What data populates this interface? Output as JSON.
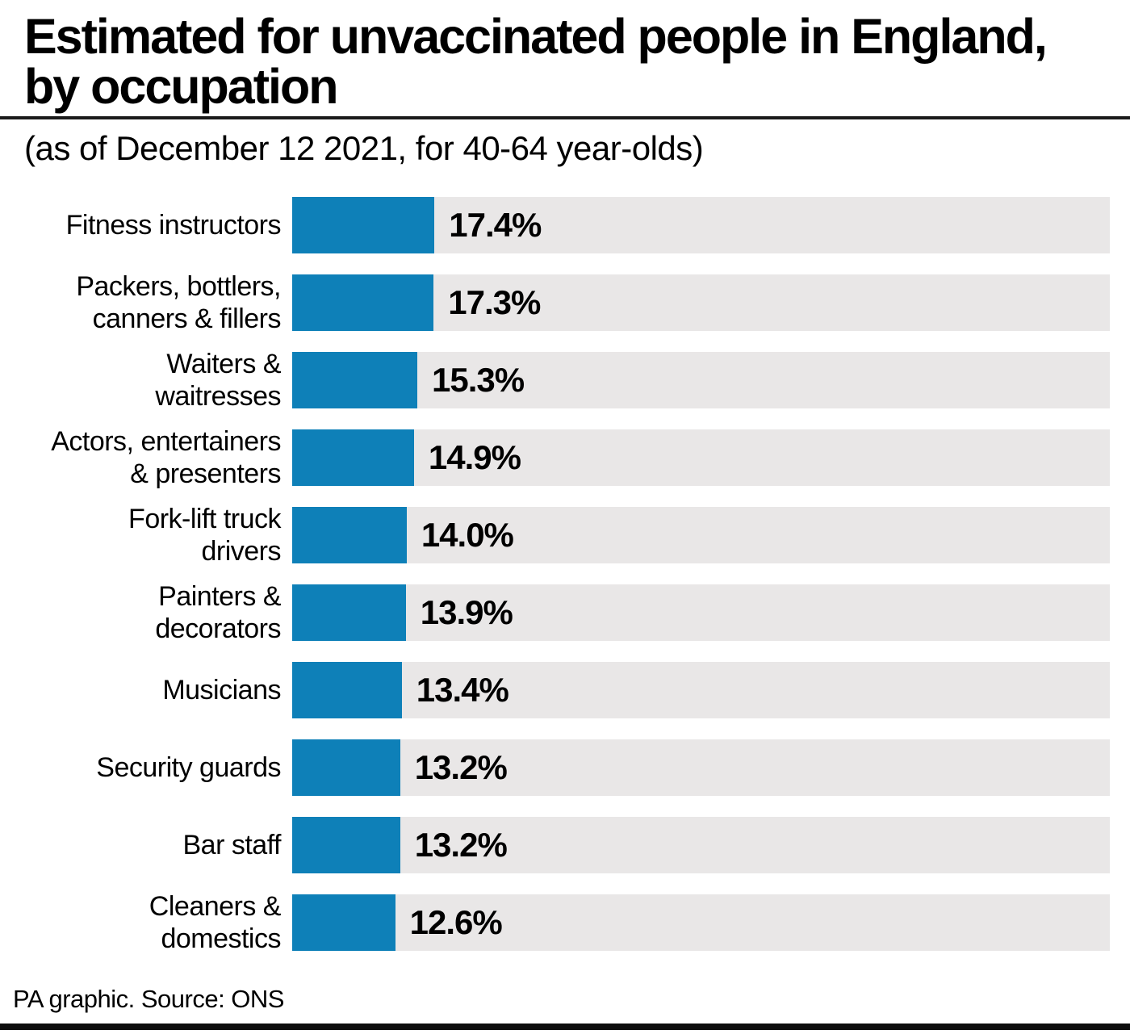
{
  "title": "Estimated for unvaccinated people in England,\nby occupation",
  "subtitle": "(as of December 12 2021, for 40-64 year-olds)",
  "source_credit": "PA graphic. Source: ONS",
  "colors": {
    "bar_fill": "#0e80b8",
    "bar_track": "#e9e7e7",
    "divider": "#1a1a1a",
    "bottom_strip": "#0d0d0d",
    "text": "#000000"
  },
  "chart_data": {
    "type": "bar",
    "orientation": "horizontal",
    "title": "Estimated for unvaccinated people in England, by occupation",
    "subtitle": "(as of December 12 2021, for 40-64 year-olds)",
    "xlabel": "",
    "ylabel": "",
    "value_unit": "%",
    "value_axis_range": [
      0,
      100
    ],
    "grid": false,
    "legend": false,
    "categories": [
      "Fitness instructors",
      "Packers, bottlers, canners & fillers",
      "Waiters & waitresses",
      "Actors, entertainers & presenters",
      "Fork-lift truck drivers",
      "Painters & decorators",
      "Musicians",
      "Security guards",
      "Bar staff",
      "Cleaners & domestics"
    ],
    "values": [
      17.4,
      17.3,
      15.3,
      14.9,
      14.0,
      13.9,
      13.4,
      13.2,
      13.2,
      12.6
    ],
    "rows": [
      {
        "label": "Fitness instructors",
        "value": 17.4,
        "value_label": "17.4%"
      },
      {
        "label": "Packers, bottlers,\ncanners & fillers",
        "value": 17.3,
        "value_label": "17.3%"
      },
      {
        "label": "Waiters &\nwaitresses",
        "value": 15.3,
        "value_label": "15.3%"
      },
      {
        "label": "Actors, entertainers\n& presenters",
        "value": 14.9,
        "value_label": "14.9%"
      },
      {
        "label": "Fork-lift truck\ndrivers",
        "value": 14.0,
        "value_label": "14.0%"
      },
      {
        "label": "Painters &\ndecorators",
        "value": 13.9,
        "value_label": "13.9%"
      },
      {
        "label": "Musicians",
        "value": 13.4,
        "value_label": "13.4%"
      },
      {
        "label": "Security guards",
        "value": 13.2,
        "value_label": "13.2%"
      },
      {
        "label": "Bar staff",
        "value": 13.2,
        "value_label": "13.2%"
      },
      {
        "label": "Cleaners &\ndomestics",
        "value": 12.6,
        "value_label": "12.6%"
      }
    ]
  }
}
